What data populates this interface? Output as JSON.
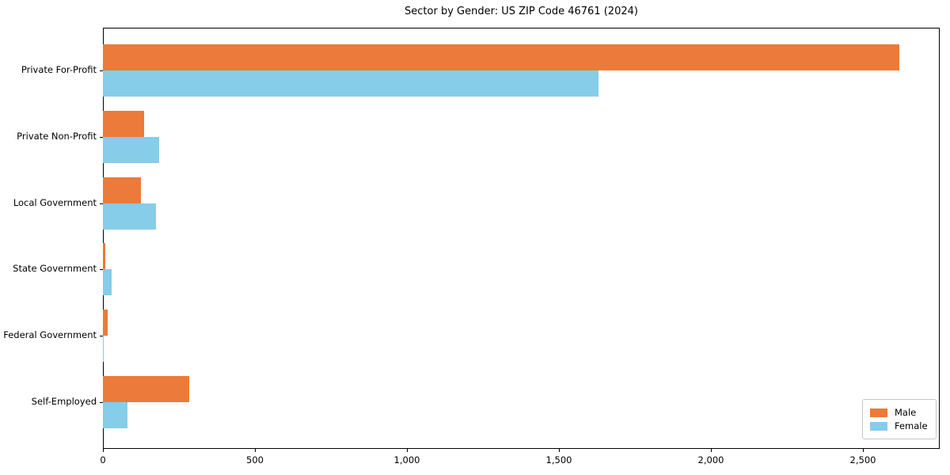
{
  "title": "Sector by Gender: US ZIP Code 46761 (2024)",
  "chart_data": {
    "type": "bar",
    "orientation": "horizontal",
    "title": "Sector by Gender: US ZIP Code 46761 (2024)",
    "categories": [
      "Private For-Profit",
      "Private Non-Profit",
      "Local Government",
      "State Government",
      "Federal Government",
      "Self-Employed"
    ],
    "series": [
      {
        "name": "Male",
        "color": "#ec7a3b",
        "values": [
          2620,
          135,
          125,
          8,
          15,
          283
        ]
      },
      {
        "name": "Female",
        "color": "#85cde8",
        "values": [
          1630,
          185,
          175,
          28,
          3,
          80
        ]
      }
    ],
    "xlim": [
      0,
      2750
    ],
    "xticks": [
      0,
      500,
      1000,
      1500,
      2000,
      2500
    ],
    "xtick_labels": [
      "0",
      "500",
      "1,000",
      "1,500",
      "2,000",
      "2,500"
    ],
    "xlabel": "",
    "ylabel": "",
    "grid": false,
    "legend_position": "lower right"
  }
}
